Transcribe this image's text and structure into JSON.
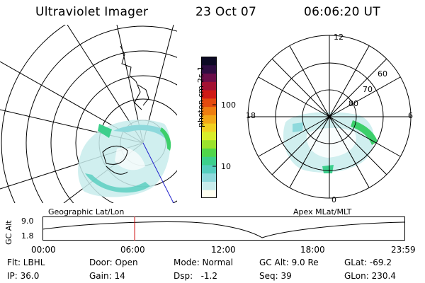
{
  "header": {
    "title": "Ultraviolet Imager",
    "date": "23 Oct 07",
    "time": "06:06:20 UT"
  },
  "left_map": {
    "label": "Geographic Lat/Lon"
  },
  "right_map": {
    "label": "Apex MLat/MLT",
    "mlt_labels": [
      "12",
      "18",
      "6",
      "0"
    ],
    "lat_labels": [
      "60",
      "70",
      "80"
    ]
  },
  "colorbar": {
    "unit_label": "photon cm-2s-1",
    "ticks": [
      "100",
      "10"
    ],
    "colors": [
      "#fffff0",
      "#c8ecec",
      "#8ed9dc",
      "#55cdbe",
      "#3ccf8c",
      "#50d64a",
      "#9be22c",
      "#d8ed2a",
      "#f1d020",
      "#f2a817",
      "#ee7e10",
      "#e44a0e",
      "#cf1a16",
      "#a31233",
      "#6b0e4a",
      "#2e0d41",
      "#0c0a24"
    ]
  },
  "timeline": {
    "ylabel": "GC Alt",
    "y_ticks": [
      "9.0",
      "1.8"
    ],
    "x_ticks": [
      "00:00",
      "06:00",
      "12:00",
      "18:00",
      "23:59"
    ],
    "current_time_hours": 6.1
  },
  "status": {
    "row1": [
      "Flt: LBHL",
      "Door: Open",
      "Mode: Normal",
      "GC Alt: 9.0 Re",
      "GLat: -69.2"
    ],
    "row2": [
      "IP: 36.0",
      "Gain: 14",
      "Dsp:   -1.2",
      "Seq: 39",
      "GLon: 230.4"
    ]
  },
  "colors": {
    "marker": "#cc0000",
    "track": "#2222cc",
    "aurora_green": "#3ccf6a",
    "aurora_cyan": "#8ed9dc"
  }
}
